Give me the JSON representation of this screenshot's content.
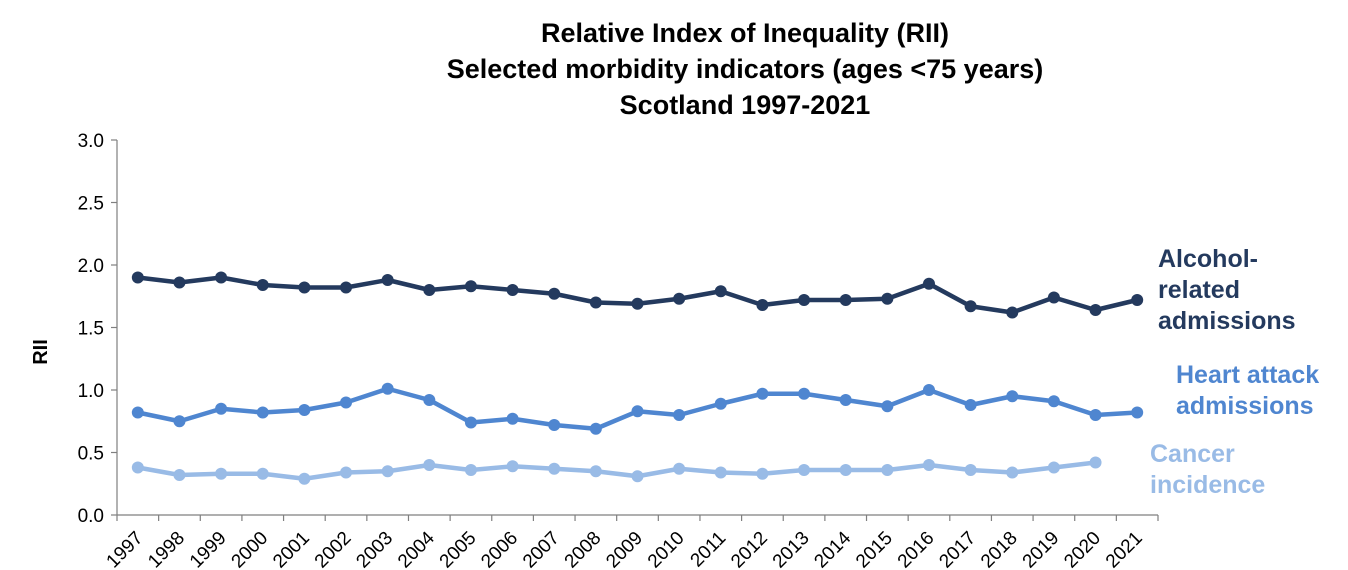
{
  "chart_data": {
    "type": "line",
    "title": [
      "Relative Index of Inequality (RII)",
      "Selected morbidity indicators (ages <75 years)",
      "Scotland 1997-2021"
    ],
    "ylabel": "RII",
    "xlabel": "",
    "ylim": [
      0,
      3
    ],
    "yticks": [
      "0.0",
      "0.5",
      "1.0",
      "1.5",
      "2.0",
      "2.5",
      "3.0"
    ],
    "ytick_values": [
      0,
      0.5,
      1,
      1.5,
      2,
      2.5,
      3
    ],
    "categories": [
      "1997",
      "1998",
      "1999",
      "2000",
      "2001",
      "2002",
      "2003",
      "2004",
      "2005",
      "2006",
      "2007",
      "2008",
      "2009",
      "2010",
      "2011",
      "2012",
      "2013",
      "2014",
      "2015",
      "2016",
      "2017",
      "2018",
      "2019",
      "2020",
      "2021"
    ],
    "grid": false,
    "legend": "inline-right",
    "series": [
      {
        "label_lines": [
          "Alcohol-",
          "related",
          "admissions"
        ],
        "color": "#243A5E",
        "values": [
          1.9,
          1.86,
          1.9,
          1.84,
          1.82,
          1.82,
          1.88,
          1.8,
          1.83,
          1.8,
          1.77,
          1.7,
          1.69,
          1.73,
          1.79,
          1.68,
          1.72,
          1.72,
          1.73,
          1.85,
          1.67,
          1.62,
          1.74,
          1.64,
          1.72
        ]
      },
      {
        "label_lines": [
          "Heart attack",
          "admissions"
        ],
        "color": "#4F86D0",
        "values": [
          0.82,
          0.75,
          0.85,
          0.82,
          0.84,
          0.9,
          1.01,
          0.92,
          0.74,
          0.77,
          0.72,
          0.69,
          0.83,
          0.8,
          0.89,
          0.97,
          0.97,
          0.92,
          0.87,
          1.0,
          0.88,
          0.95,
          0.91,
          0.8,
          0.82
        ]
      },
      {
        "label_lines": [
          "Cancer",
          "incidence"
        ],
        "color": "#99BBE6",
        "values": [
          0.38,
          0.32,
          0.33,
          0.33,
          0.29,
          0.34,
          0.35,
          0.4,
          0.36,
          0.39,
          0.37,
          0.35,
          0.31,
          0.37,
          0.34,
          0.33,
          0.36,
          0.36,
          0.36,
          0.4,
          0.36,
          0.34,
          0.38,
          0.42,
          null
        ]
      }
    ]
  }
}
